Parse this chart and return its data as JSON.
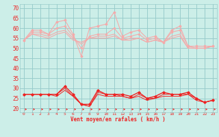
{
  "x": [
    0,
    1,
    2,
    3,
    4,
    5,
    6,
    7,
    8,
    9,
    10,
    11,
    12,
    13,
    14,
    15,
    16,
    17,
    18,
    19,
    20,
    21,
    22,
    23
  ],
  "rafales": [
    54,
    59,
    59,
    57,
    63,
    64,
    57,
    46,
    60,
    61,
    62,
    68,
    56,
    58,
    59,
    55,
    56,
    53,
    59,
    61,
    51,
    51,
    51,
    51
  ],
  "moy_line1": [
    54,
    58,
    58,
    57,
    60,
    61,
    56,
    50,
    56,
    57,
    57,
    60,
    55,
    56,
    57,
    54,
    55,
    53,
    58,
    59,
    51,
    50,
    50,
    51
  ],
  "moy_line2": [
    54,
    57,
    57,
    56,
    58,
    59,
    55,
    52,
    55,
    56,
    56,
    57,
    54,
    55,
    55,
    53,
    54,
    53,
    56,
    57,
    50,
    50,
    50,
    51
  ],
  "moy_line3": [
    54,
    57,
    56,
    55,
    57,
    58,
    54,
    53,
    55,
    55,
    55,
    56,
    54,
    54,
    55,
    53,
    54,
    53,
    55,
    56,
    50,
    50,
    50,
    51
  ],
  "vent_moy": [
    27,
    27,
    27,
    27,
    27,
    31,
    27,
    22,
    22,
    29,
    27,
    27,
    27,
    26,
    28,
    25,
    26,
    28,
    27,
    27,
    28,
    25,
    23,
    24
  ],
  "vent_line2": [
    27,
    27,
    27,
    27,
    27,
    30,
    26,
    22,
    21,
    28,
    27,
    27,
    26,
    25,
    27,
    25,
    25,
    27,
    27,
    27,
    27,
    25,
    23,
    24
  ],
  "vent_line3": [
    27,
    27,
    27,
    27,
    26,
    29,
    26,
    22,
    21,
    27,
    26,
    26,
    26,
    25,
    26,
    24,
    25,
    26,
    26,
    26,
    27,
    24,
    23,
    24
  ],
  "bg_color": "#cceee8",
  "grid_color": "#99cccc",
  "line_light": "#f4aaaa",
  "line_dark": "#ee2222",
  "xlabel": "Vent moyen/en rafales ( km/h )",
  "ylim": [
    18,
    72
  ],
  "xlim": [
    -0.5,
    23.5
  ],
  "yticks": [
    20,
    25,
    30,
    35,
    40,
    45,
    50,
    55,
    60,
    65,
    70
  ],
  "xticks": [
    0,
    1,
    2,
    3,
    4,
    5,
    6,
    7,
    8,
    9,
    10,
    11,
    12,
    13,
    14,
    15,
    16,
    17,
    18,
    19,
    20,
    21,
    22,
    23
  ]
}
